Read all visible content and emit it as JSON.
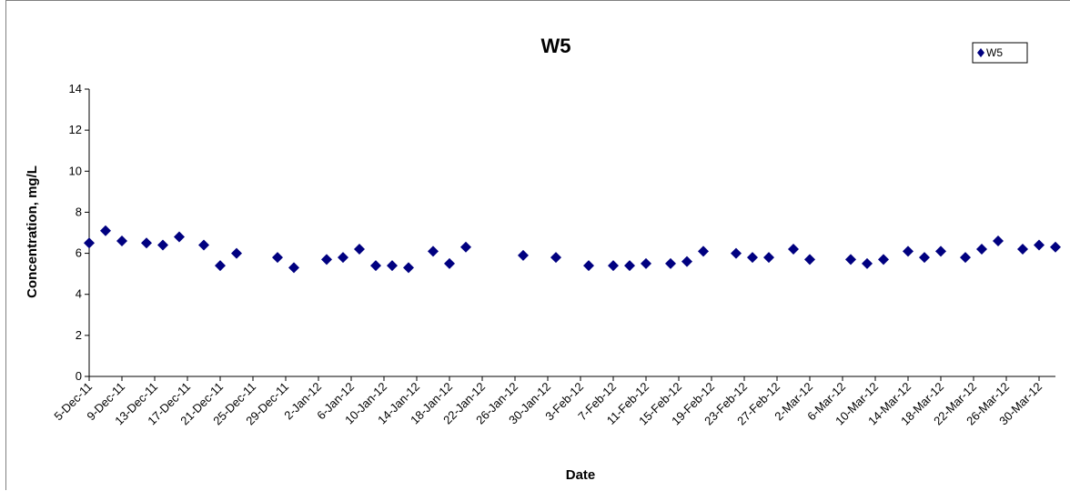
{
  "chart_data": {
    "type": "scatter",
    "title": "W5",
    "xlabel": "Date",
    "ylabel": "Concentration, mg/L",
    "ylim": [
      0,
      14
    ],
    "yticks": [
      0,
      2,
      4,
      6,
      8,
      10,
      12,
      14
    ],
    "xlim": [
      "2011-12-05",
      "2012-04-01"
    ],
    "x_tick_labels": [
      "5-Dec-11",
      "9-Dec-11",
      "13-Dec-11",
      "17-Dec-11",
      "21-Dec-11",
      "25-Dec-11",
      "29-Dec-11",
      "2-Jan-12",
      "6-Jan-12",
      "10-Jan-12",
      "14-Jan-12",
      "18-Jan-12",
      "22-Jan-12",
      "26-Jan-12",
      "30-Jan-12",
      "3-Feb-12",
      "7-Feb-12",
      "11-Feb-12",
      "15-Feb-12",
      "19-Feb-12",
      "23-Feb-12",
      "27-Feb-12",
      "2-Mar-12",
      "6-Mar-12",
      "10-Mar-12",
      "14-Mar-12",
      "18-Mar-12",
      "22-Mar-12",
      "26-Mar-12",
      "30-Mar-12"
    ],
    "grid": false,
    "legend_position": "top-right",
    "series": [
      {
        "name": "W5",
        "color": "#000080",
        "marker": "diamond",
        "x": [
          "2011-12-05",
          "2011-12-07",
          "2011-12-09",
          "2011-12-12",
          "2011-12-14",
          "2011-12-16",
          "2011-12-19",
          "2011-12-21",
          "2011-12-23",
          "2011-12-28",
          "2011-12-30",
          "2012-01-03",
          "2012-01-05",
          "2012-01-07",
          "2012-01-09",
          "2012-01-11",
          "2012-01-13",
          "2012-01-16",
          "2012-01-18",
          "2012-01-20",
          "2012-01-27",
          "2012-01-31",
          "2012-02-04",
          "2012-02-07",
          "2012-02-09",
          "2012-02-11",
          "2012-02-14",
          "2012-02-16",
          "2012-02-18",
          "2012-02-22",
          "2012-02-24",
          "2012-02-26",
          "2012-02-29",
          "2012-03-02",
          "2012-03-07",
          "2012-03-09",
          "2012-03-11",
          "2012-03-14",
          "2012-03-16",
          "2012-03-18",
          "2012-03-21",
          "2012-03-23",
          "2012-03-25",
          "2012-03-28",
          "2012-03-30",
          "2012-04-01"
        ],
        "y": [
          6.5,
          7.1,
          6.6,
          6.5,
          6.4,
          6.8,
          6.4,
          5.4,
          6.0,
          5.8,
          5.3,
          5.7,
          5.8,
          6.2,
          5.4,
          5.4,
          5.3,
          6.1,
          5.5,
          6.3,
          5.9,
          5.8,
          5.4,
          5.4,
          5.4,
          5.5,
          5.5,
          5.6,
          6.1,
          6.0,
          5.8,
          5.8,
          6.2,
          5.7,
          5.7,
          5.5,
          5.7,
          6.1,
          5.8,
          6.1,
          5.8,
          6.2,
          6.6,
          6.2,
          6.4,
          6.3
        ]
      }
    ]
  }
}
